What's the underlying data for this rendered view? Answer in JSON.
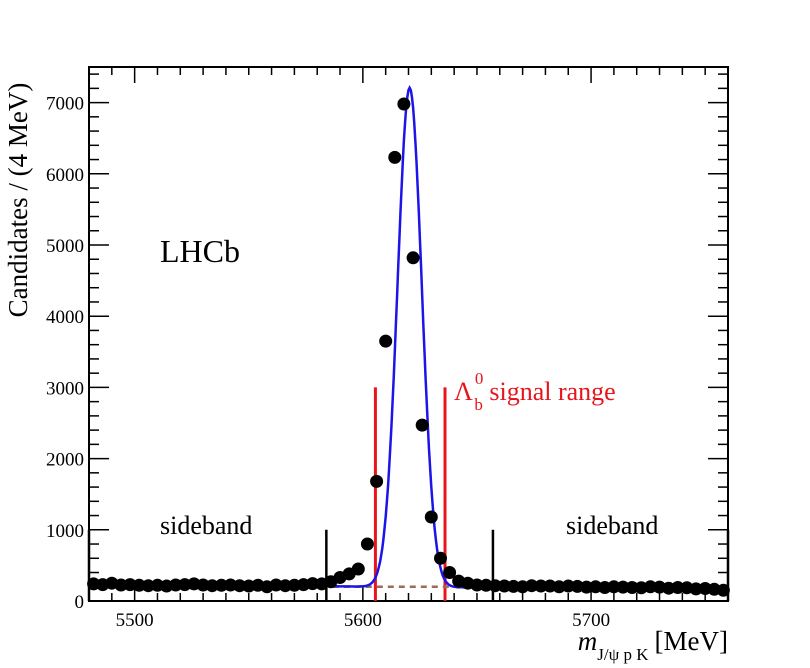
{
  "chart_data": {
    "type": "scatter",
    "title": "",
    "experiment_label": "LHCb",
    "ylabel": "Candidates / (4 MeV)",
    "xlabel": {
      "variable": "m",
      "subscript": "J/ψ p K",
      "unit": "[MeV]"
    },
    "xlim": [
      5480,
      5760
    ],
    "ylim": [
      0,
      7500
    ],
    "bin_width": 4,
    "x_ticks": [
      5500,
      5600,
      5700
    ],
    "x_tick_labels": [
      "5500",
      "5600",
      "5700"
    ],
    "y_ticks": [
      0,
      1000,
      2000,
      3000,
      4000,
      5000,
      6000,
      7000
    ],
    "y_tick_labels": [
      "0",
      "1000",
      "2000",
      "3000",
      "4000",
      "5000",
      "6000",
      "7000"
    ],
    "series": [
      {
        "name": "data",
        "style": "points",
        "x": [
          5482,
          5486,
          5490,
          5494,
          5498,
          5502,
          5506,
          5510,
          5514,
          5518,
          5522,
          5526,
          5530,
          5534,
          5538,
          5542,
          5546,
          5550,
          5554,
          5558,
          5562,
          5566,
          5570,
          5574,
          5578,
          5582,
          5586,
          5590,
          5594,
          5598,
          5602,
          5606,
          5610,
          5614,
          5618,
          5622,
          5626,
          5630,
          5634,
          5638,
          5642,
          5646,
          5650,
          5654,
          5658,
          5662,
          5666,
          5670,
          5674,
          5678,
          5682,
          5686,
          5690,
          5694,
          5698,
          5702,
          5706,
          5710,
          5714,
          5718,
          5722,
          5726,
          5730,
          5734,
          5738,
          5742,
          5746,
          5750,
          5754,
          5758
        ],
        "y": [
          240,
          230,
          250,
          225,
          230,
          220,
          215,
          220,
          210,
          225,
          230,
          240,
          225,
          215,
          220,
          225,
          215,
          210,
          220,
          200,
          225,
          215,
          220,
          230,
          245,
          240,
          270,
          330,
          380,
          450,
          800,
          1680,
          3650,
          6230,
          6980,
          4820,
          2470,
          1180,
          600,
          400,
          280,
          250,
          225,
          220,
          215,
          210,
          205,
          200,
          215,
          210,
          210,
          200,
          210,
          205,
          195,
          200,
          190,
          200,
          195,
          190,
          185,
          200,
          195,
          180,
          190,
          185,
          170,
          175,
          165,
          150
        ]
      },
      {
        "name": "fit",
        "style": "line",
        "color": "#1d14e8",
        "peak_mean": 5620.5,
        "peak_sigma": 5.3,
        "peak_height": 7010,
        "background_start": 235,
        "background_end": 160
      },
      {
        "name": "background",
        "style": "dashed",
        "color": "#9c6b5a",
        "x_range": [
          5582,
          5660
        ],
        "y_level": 200
      }
    ],
    "annotations": {
      "signal_range": {
        "label_symbol": "Λ",
        "label_sup": "0",
        "label_sub": "b",
        "label_text": " signal range",
        "color": "#e8141c",
        "x_low": 5605.5,
        "x_high": 5636,
        "y_top": 3000
      },
      "sideband_left": {
        "label": "sideband",
        "x_low": 5480,
        "x_high": 5584,
        "y_top": 1000
      },
      "sideband_right": {
        "label": "sideband",
        "x_low": 5657,
        "x_high": 5760,
        "y_top": 1000
      }
    }
  }
}
